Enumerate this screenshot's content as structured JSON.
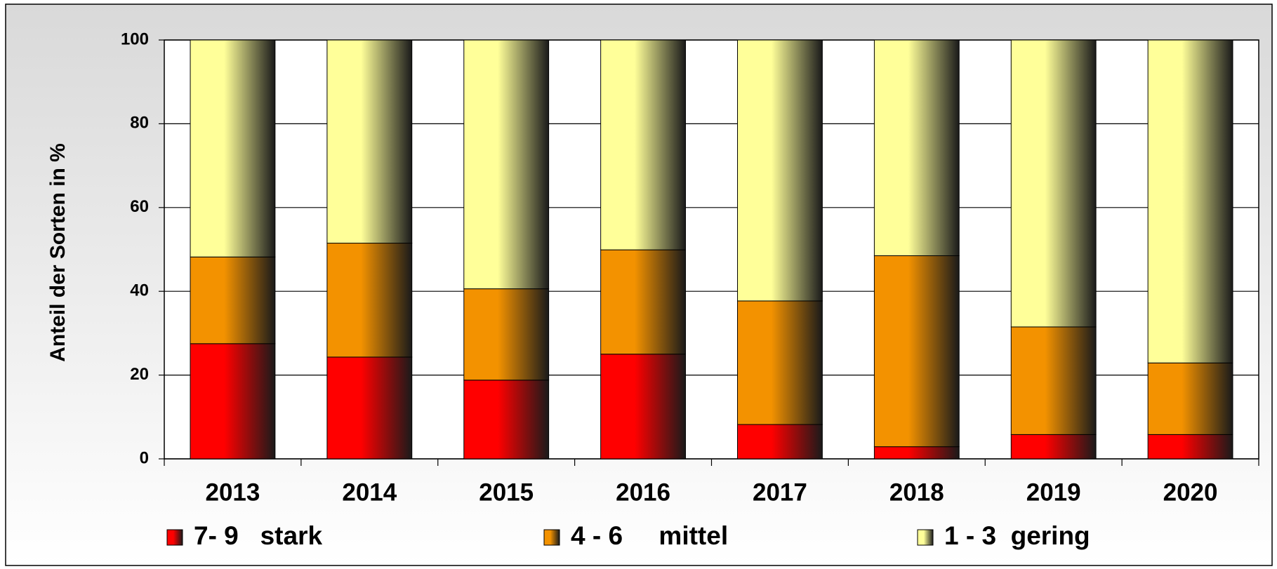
{
  "chart_data": {
    "type": "stacked_bar",
    "y_axis_label": "Anteil der Sorten in %",
    "categories": [
      "2013",
      "2014",
      "2015",
      "2016",
      "2017",
      "2018",
      "2019",
      "2020"
    ],
    "series": [
      {
        "name": "7- 9   stark",
        "color": "#ff0000",
        "values": [
          27.5,
          24.3,
          18.8,
          25.0,
          8.2,
          2.9,
          5.8,
          5.8
        ]
      },
      {
        "name": "4 - 6     mittel",
        "color": "#f39200",
        "values": [
          20.7,
          27.2,
          21.8,
          24.9,
          29.5,
          45.6,
          25.7,
          17.1
        ]
      },
      {
        "name": "1 - 3  gering",
        "color": "#ffff99",
        "values": [
          51.8,
          48.5,
          59.4,
          50.1,
          62.3,
          51.5,
          68.5,
          77.1
        ]
      }
    ],
    "ylim": [
      0,
      100
    ],
    "yticks": [
      0,
      20,
      40,
      60,
      80,
      100
    ],
    "grid": true,
    "legend": "bottom"
  }
}
